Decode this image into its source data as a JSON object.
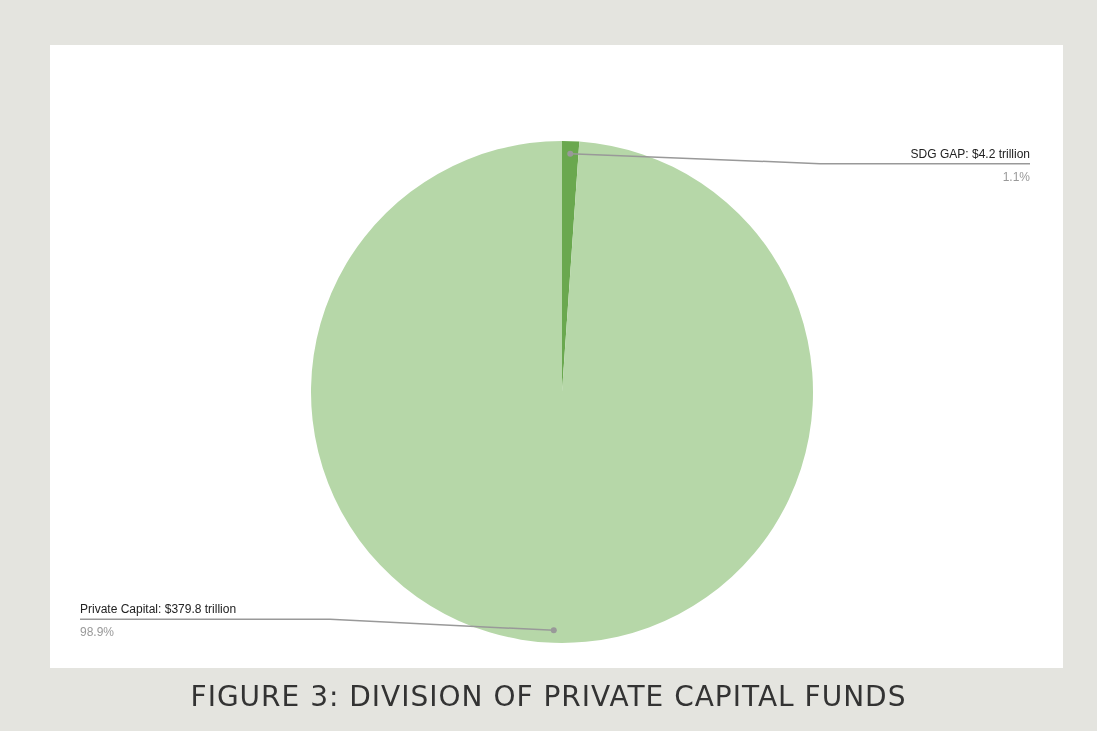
{
  "chart_data": {
    "type": "pie",
    "title": "FIGURE 3: DIVISION OF PRIVATE CAPITAL FUNDS",
    "categories": [
      "SDG GAP: $4.2 trillion",
      "Private Capital: $379.8 trillion"
    ],
    "values": [
      1.1,
      98.9
    ],
    "colors": [
      "#6aa84f",
      "#b6d7a8"
    ],
    "value_labels": [
      "1.1%",
      "98.9%"
    ]
  }
}
